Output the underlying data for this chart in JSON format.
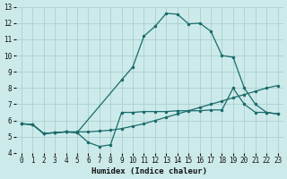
{
  "xlabel": "Humidex (Indice chaleur)",
  "xlim": [
    -0.5,
    23.5
  ],
  "ylim": [
    4,
    13
  ],
  "yticks": [
    4,
    5,
    6,
    7,
    8,
    9,
    10,
    11,
    12,
    13
  ],
  "xticks": [
    0,
    1,
    2,
    3,
    4,
    5,
    6,
    7,
    8,
    9,
    10,
    11,
    12,
    13,
    14,
    15,
    16,
    17,
    18,
    19,
    20,
    21,
    22,
    23
  ],
  "bg_color": "#cdeaea",
  "grid_color": "#aacfcf",
  "line_color": "#1a6b6b",
  "line1_x": [
    0,
    1,
    2,
    3,
    4,
    5,
    6,
    7,
    8,
    9,
    10,
    11,
    12,
    13,
    14,
    15,
    16,
    17,
    18,
    19,
    20,
    21,
    22,
    23
  ],
  "line1_y": [
    5.8,
    5.75,
    5.2,
    5.25,
    5.3,
    5.3,
    5.3,
    5.35,
    5.4,
    5.5,
    5.65,
    5.8,
    6.0,
    6.2,
    6.4,
    6.6,
    6.8,
    7.0,
    7.2,
    7.4,
    7.6,
    7.8,
    8.0,
    8.15
  ],
  "line2_x": [
    0,
    1,
    2,
    3,
    4,
    5,
    6,
    7,
    8,
    9,
    10,
    11,
    12,
    13,
    14,
    15,
    16,
    17,
    18,
    19,
    20,
    21,
    22,
    23
  ],
  "line2_y": [
    5.8,
    5.75,
    5.2,
    5.25,
    5.3,
    5.25,
    4.65,
    4.4,
    4.5,
    6.5,
    6.5,
    6.55,
    6.55,
    6.55,
    6.6,
    6.6,
    6.6,
    6.65,
    6.65,
    8.0,
    7.0,
    6.5,
    6.5,
    6.4
  ],
  "line3_x": [
    0,
    1,
    2,
    3,
    4,
    5,
    9,
    10,
    11,
    12,
    13,
    14,
    15,
    16,
    17,
    18,
    19,
    20,
    21,
    22,
    23
  ],
  "line3_y": [
    5.8,
    5.75,
    5.2,
    5.25,
    5.3,
    5.25,
    8.5,
    9.3,
    11.2,
    11.8,
    12.6,
    12.55,
    11.95,
    12.0,
    11.5,
    10.0,
    9.9,
    8.0,
    7.0,
    6.5,
    6.4
  ],
  "marker": ".",
  "markersize": 3,
  "linewidth": 0.9
}
